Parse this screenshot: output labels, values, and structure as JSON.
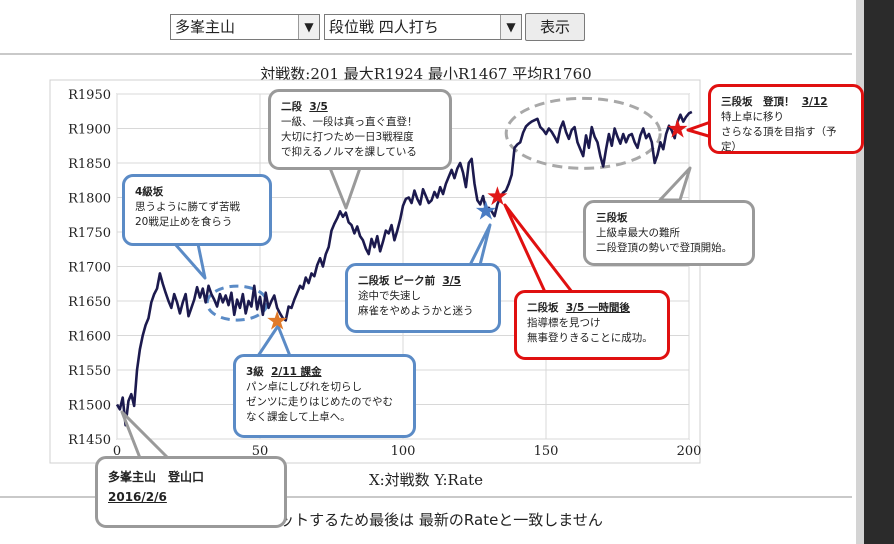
{
  "controls": {
    "player_select": "多峯主山",
    "mode_select": "段位戦 四人打ち",
    "show_button": "表示"
  },
  "stats_line": "対戦数:201  最大R1924  最小R1467  平均R1760",
  "axis_caption": "X:対戦数 Y:Rate",
  "footnote": "プロットするため最後は 最新のRateと一致しません",
  "chart_data": {
    "type": "line",
    "xlim": [
      0,
      200
    ],
    "ylim": [
      1450,
      1950
    ],
    "xticks": [
      0,
      50,
      100,
      150,
      200
    ],
    "yticks": [
      1450,
      1500,
      1550,
      1600,
      1650,
      1700,
      1750,
      1800,
      1850,
      1900,
      1950
    ],
    "ytick_prefix": "R",
    "grid": true,
    "line_color": "#1c1a4e",
    "series": [
      {
        "x": [
          0,
          1,
          2,
          3,
          4,
          5,
          6,
          7,
          8,
          9,
          10,
          11,
          12,
          13,
          14,
          15,
          16,
          17,
          18,
          19,
          20,
          21,
          22,
          23,
          24,
          25,
          26,
          27,
          28,
          29,
          30,
          31,
          32,
          33,
          34,
          35,
          36,
          37,
          38,
          39,
          40,
          41,
          42,
          43,
          44,
          45,
          46,
          47,
          48,
          49,
          50,
          51,
          52,
          53,
          54,
          55,
          56,
          57,
          58,
          59,
          60,
          61,
          62,
          63,
          64,
          65,
          66,
          67,
          68,
          69,
          70,
          71,
          72,
          73,
          74,
          75,
          76,
          77,
          78,
          79,
          80,
          81,
          82,
          83,
          84,
          85,
          86,
          87,
          88,
          89,
          90,
          91,
          92,
          93,
          94,
          95,
          96,
          97,
          98,
          99,
          100,
          101,
          102,
          103,
          104,
          105,
          106,
          107,
          108,
          109,
          110,
          111,
          112,
          113,
          114,
          115,
          116,
          117,
          118,
          119,
          120,
          121,
          122,
          123,
          124,
          125,
          126,
          127,
          128,
          129,
          130,
          131,
          132,
          133,
          134,
          135,
          136,
          137,
          138,
          139,
          140,
          141,
          142,
          143,
          144,
          145,
          146,
          147,
          148,
          149,
          150,
          151,
          152,
          153,
          154,
          155,
          156,
          157,
          158,
          159,
          160,
          161,
          162,
          163,
          164,
          165,
          166,
          167,
          168,
          169,
          170,
          171,
          172,
          173,
          174,
          175,
          176,
          177,
          178,
          179,
          180,
          181,
          182,
          183,
          184,
          185,
          186,
          187,
          188,
          189,
          190,
          191,
          192,
          193,
          194,
          195,
          196,
          197,
          198,
          199,
          200,
          201
        ],
        "y": [
          1500,
          1493,
          1510,
          1470,
          1505,
          1515,
          1498,
          1550,
          1580,
          1600,
          1615,
          1625,
          1648,
          1660,
          1668,
          1690,
          1675,
          1662,
          1650,
          1640,
          1660,
          1648,
          1632,
          1648,
          1660,
          1628,
          1640,
          1652,
          1670,
          1655,
          1668,
          1648,
          1672,
          1660,
          1652,
          1642,
          1660,
          1648,
          1658,
          1644,
          1662,
          1630,
          1652,
          1640,
          1660,
          1632,
          1650,
          1642,
          1672,
          1638,
          1656,
          1630,
          1662,
          1640,
          1650,
          1658,
          1640,
          1632,
          1625,
          1622,
          1642,
          1640,
          1652,
          1662,
          1672,
          1668,
          1684,
          1676,
          1690,
          1686,
          1702,
          1712,
          1700,
          1718,
          1728,
          1752,
          1762,
          1770,
          1780,
          1772,
          1778,
          1764,
          1760,
          1748,
          1758,
          1744,
          1738,
          1726,
          1718,
          1740,
          1728,
          1744,
          1722,
          1736,
          1752,
          1748,
          1760,
          1738,
          1752,
          1768,
          1788,
          1798,
          1800,
          1792,
          1810,
          1798,
          1790,
          1812,
          1802,
          1792,
          1796,
          1808,
          1800,
          1815,
          1805,
          1820,
          1830,
          1840,
          1828,
          1842,
          1850,
          1836,
          1815,
          1850,
          1856,
          1820,
          1796,
          1790,
          1802,
          1782,
          1785,
          1780,
          1773,
          1790,
          1800,
          1807,
          1810,
          1820,
          1833,
          1872,
          1877,
          1880,
          1894,
          1903,
          1907,
          1910,
          1912,
          1914,
          1902,
          1898,
          1892,
          1900,
          1895,
          1888,
          1880,
          1900,
          1910,
          1895,
          1885,
          1898,
          1902,
          1880,
          1870,
          1860,
          1890,
          1872,
          1902,
          1888,
          1880,
          1860,
          1845,
          1870,
          1892,
          1875,
          1900,
          1888,
          1878,
          1892,
          1880,
          1890,
          1892,
          1880,
          1872,
          1890,
          1900,
          1886,
          1892,
          1880,
          1850,
          1862,
          1880,
          1870,
          1892,
          1904,
          1897,
          1886,
          1910,
          1920,
          1910,
          1917,
          1922,
          1924
        ]
      }
    ]
  },
  "annotations": [
    {
      "id": "4kyu",
      "title": "4級坂",
      "lines": [
        "思うように勝てず苦戦",
        "20戦足止めを食らう"
      ]
    },
    {
      "id": "nidan1",
      "title": "二段",
      "date": "3/5",
      "lines": [
        "一級、一段は真っ直ぐ直登！",
        "大切に打つため一日3戦程度",
        "で抑えるノルマを課している"
      ]
    },
    {
      "id": "sandan",
      "title": "三段坂",
      "lines": [
        "上級卓最大の難所",
        "二段登頂の勢いで登頂開始。"
      ]
    },
    {
      "id": "top",
      "title": "三段坂　登頂！",
      "date": "3/12",
      "lines": [
        "特上卓に移り",
        "さらなる頂を目指す（予定）"
      ]
    },
    {
      "id": "peak",
      "title": "二段坂 ピーク前",
      "date": "3/5",
      "lines": [
        "途中で失速し",
        "麻雀をやめようかと迷う"
      ]
    },
    {
      "id": "later",
      "title": "二段坂",
      "date": "3/5 一時間後",
      "lines": [
        "指導標を見つけ",
        "無事登りきることに成功。"
      ]
    },
    {
      "id": "3kyu",
      "title": "3級",
      "date": "2/11 課金",
      "lines": [
        "パン卓にしびれを切らし",
        "ゼンツに走りはじめたのでやむ",
        "なく課金して上卓へ。"
      ]
    },
    {
      "id": "start",
      "title": "多峯主山　登山口",
      "date": "2016/2/6"
    }
  ],
  "markers": {
    "star": "★",
    "arrow_down": "▼"
  },
  "colors": {
    "line": "#1c1a4e",
    "blue": "#5b8bc6",
    "red": "#e01010",
    "gray": "#9a9a9a",
    "orange_star": "#e07a2a",
    "blue_star": "#4a7cc4",
    "red_star": "#e01818"
  }
}
